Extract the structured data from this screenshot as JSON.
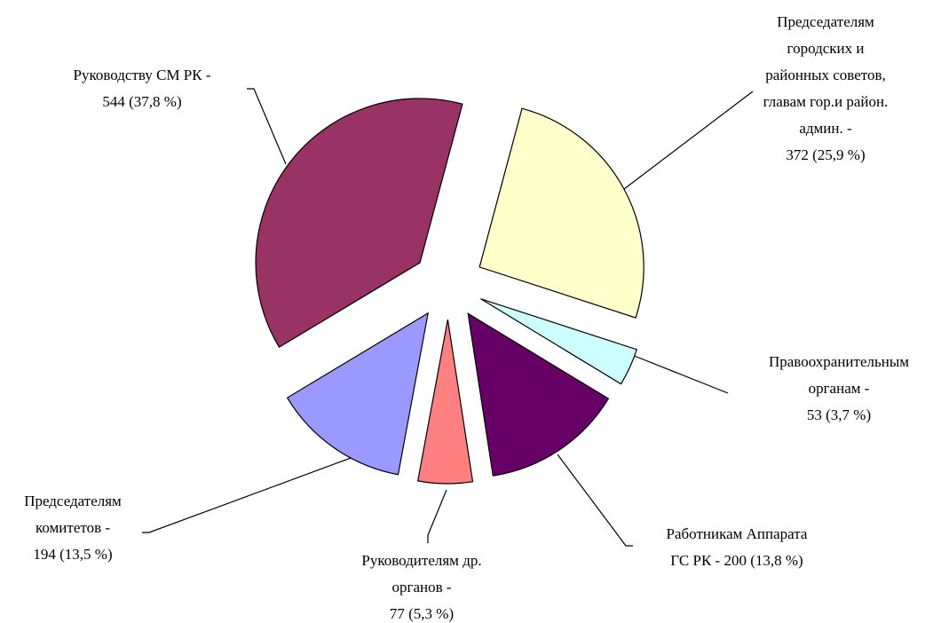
{
  "chart_data": {
    "type": "pie",
    "values": [
      372,
      53,
      200,
      77,
      194,
      544
    ],
    "value_labels": [
      [
        "Председателям",
        "городских и",
        "районных советов,",
        "главам гор.и район.",
        "админ. -",
        "372 (25,9 %)"
      ],
      [
        "Правоохранительным",
        "органам  -",
        "53 (3,7 %)"
      ],
      [
        "Работникам Аппарата",
        "ГС РК - 200 (13,8 %)"
      ],
      [
        "Руководителям др.",
        "органов -",
        "77 (5,3 %)"
      ],
      [
        "Председателям",
        "комитетов -",
        "194 (13,5 %)"
      ],
      [
        "Руководству СМ РК -",
        "544 (37,8 %)"
      ]
    ],
    "colors": [
      "#FFFFCC",
      "#CCFFFF",
      "#660066",
      "#FF8080",
      "#9999FF",
      "#993366"
    ],
    "start_angle": 15,
    "exploded": true
  }
}
